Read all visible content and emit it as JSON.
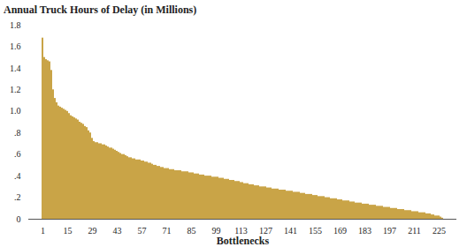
{
  "chart_data": {
    "type": "bar",
    "title": "Annual Truck Hours of Delay (in Millions)",
    "x_label": "Bottlenecks",
    "color": "#c9a447",
    "ylim": [
      0,
      1.8
    ],
    "yticks": [
      0,
      {
        "value": 0.2,
        "label": ".2"
      },
      {
        "value": 0.4,
        "label": ".4"
      },
      {
        "value": 0.6,
        "label": ".6"
      },
      {
        "value": 0.8,
        "label": ".8"
      },
      {
        "value": 1.0,
        "label": "1.0"
      },
      1.2,
      1.4,
      1.6,
      1.8
    ],
    "categories": [
      "1",
      null,
      null,
      null,
      null,
      null,
      null,
      null,
      null,
      null,
      null,
      null,
      null,
      null,
      "15",
      null,
      null,
      null,
      null,
      null,
      null,
      null,
      null,
      null,
      null,
      null,
      null,
      null,
      "29",
      null,
      null,
      null,
      null,
      null,
      null,
      null,
      null,
      null,
      null,
      null,
      null,
      null,
      "43",
      null,
      null,
      null,
      null,
      null,
      null,
      null,
      null,
      null,
      null,
      null,
      null,
      null,
      "57",
      null,
      null,
      null,
      null,
      null,
      null,
      null,
      null,
      null,
      null,
      null,
      null,
      null,
      "71",
      null,
      null,
      null,
      null,
      null,
      null,
      null,
      null,
      null,
      null,
      null,
      null,
      null,
      "85",
      null,
      null,
      null,
      null,
      null,
      null,
      null,
      null,
      null,
      null,
      null,
      null,
      null,
      "99",
      null,
      null,
      null,
      null,
      null,
      null,
      null,
      null,
      null,
      null,
      null,
      null,
      null,
      "113",
      null,
      null,
      null,
      null,
      null,
      null,
      null,
      null,
      null,
      null,
      null,
      null,
      null,
      "127",
      null,
      null,
      null,
      null,
      null,
      null,
      null,
      null,
      null,
      null,
      null,
      null,
      null,
      "141",
      null,
      null,
      null,
      null,
      null,
      null,
      null,
      null,
      null,
      null,
      null,
      null,
      null,
      "155",
      null,
      null,
      null,
      null,
      null,
      null,
      null,
      null,
      null,
      null,
      null,
      null,
      null,
      "169",
      null,
      null,
      null,
      null,
      null,
      null,
      null,
      null,
      null,
      null,
      null,
      null,
      null,
      "183",
      null,
      null,
      null,
      null,
      null,
      null,
      null,
      null,
      null,
      null,
      null,
      null,
      null,
      "197",
      null,
      null,
      null,
      null,
      null,
      null,
      null,
      null,
      null,
      null,
      null,
      null,
      null,
      "211",
      null,
      null,
      null,
      null,
      null,
      null,
      null,
      null,
      null,
      null,
      null,
      null,
      null,
      "225",
      null,
      null
    ],
    "values": [
      1.68,
      1.5,
      1.48,
      1.47,
      1.46,
      1.38,
      1.2,
      1.12,
      1.08,
      1.05,
      1.04,
      1.03,
      1.02,
      1.01,
      1.0,
      0.98,
      0.96,
      0.95,
      0.94,
      0.93,
      0.92,
      0.9,
      0.89,
      0.88,
      0.86,
      0.85,
      0.82,
      0.8,
      0.75,
      0.72,
      0.71,
      0.71,
      0.7,
      0.7,
      0.69,
      0.69,
      0.68,
      0.67,
      0.66,
      0.66,
      0.65,
      0.64,
      0.63,
      0.62,
      0.61,
      0.6,
      0.6,
      0.59,
      0.58,
      0.57,
      0.57,
      0.56,
      0.56,
      0.55,
      0.55,
      0.55,
      0.54,
      0.54,
      0.53,
      0.53,
      0.52,
      0.52,
      0.51,
      0.5,
      0.5,
      0.49,
      0.49,
      0.48,
      0.48,
      0.47,
      0.47,
      0.47,
      0.46,
      0.46,
      0.46,
      0.45,
      0.45,
      0.45,
      0.45,
      0.44,
      0.44,
      0.44,
      0.44,
      0.43,
      0.43,
      0.43,
      0.42,
      0.42,
      0.42,
      0.41,
      0.41,
      0.41,
      0.4,
      0.4,
      0.4,
      0.4,
      0.39,
      0.39,
      0.39,
      0.39,
      0.38,
      0.38,
      0.38,
      0.37,
      0.37,
      0.37,
      0.36,
      0.36,
      0.36,
      0.35,
      0.35,
      0.35,
      0.34,
      0.34,
      0.33,
      0.33,
      0.33,
      0.32,
      0.32,
      0.32,
      0.31,
      0.31,
      0.31,
      0.3,
      0.3,
      0.3,
      0.3,
      0.29,
      0.29,
      0.29,
      0.28,
      0.28,
      0.28,
      0.28,
      0.27,
      0.27,
      0.27,
      0.27,
      0.26,
      0.26,
      0.26,
      0.26,
      0.25,
      0.25,
      0.25,
      0.25,
      0.24,
      0.24,
      0.24,
      0.23,
      0.23,
      0.23,
      0.23,
      0.22,
      0.22,
      0.22,
      0.21,
      0.21,
      0.21,
      0.21,
      0.2,
      0.2,
      0.2,
      0.19,
      0.19,
      0.19,
      0.19,
      0.18,
      0.18,
      0.18,
      0.17,
      0.17,
      0.17,
      0.17,
      0.16,
      0.16,
      0.16,
      0.15,
      0.15,
      0.15,
      0.15,
      0.14,
      0.14,
      0.14,
      0.14,
      0.13,
      0.13,
      0.13,
      0.13,
      0.12,
      0.12,
      0.12,
      0.12,
      0.11,
      0.11,
      0.11,
      0.11,
      0.1,
      0.1,
      0.1,
      0.1,
      0.09,
      0.09,
      0.09,
      0.09,
      0.08,
      0.08,
      0.08,
      0.08,
      0.07,
      0.07,
      0.07,
      0.07,
      0.06,
      0.06,
      0.06,
      0.06,
      0.05,
      0.05,
      0.05,
      0.04,
      0.04,
      0.03,
      0.03,
      0.03,
      0.02,
      0.01
    ]
  }
}
